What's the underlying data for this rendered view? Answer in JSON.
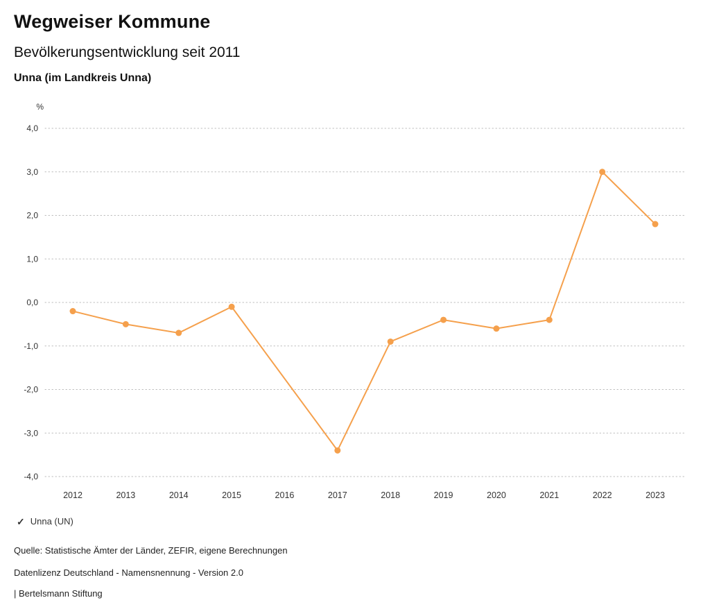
{
  "header": {
    "title": "Wegweiser Kommune",
    "subtitle": "Bevölkerungsentwicklung seit 2011",
    "region": "Unna (im Landkreis Unna)"
  },
  "colors": {
    "accent": "#F5A04C",
    "grid": "#bbbbbb",
    "axis_text": "#333333"
  },
  "icons": {
    "legend_check": "✓"
  },
  "chart_data": {
    "type": "line",
    "title": "Bevölkerungsentwicklung seit 2011",
    "unit_label": "%",
    "x": [
      2012,
      2013,
      2014,
      2015,
      2016,
      2017,
      2018,
      2019,
      2020,
      2021,
      2022,
      2023
    ],
    "series": [
      {
        "name": "Unna (UN)",
        "color": "#F5A04C",
        "values": [
          -0.2,
          -0.5,
          -0.7,
          -0.1,
          null,
          -3.4,
          -0.9,
          -0.4,
          -0.6,
          -0.4,
          3.0,
          1.8
        ]
      }
    ],
    "ylim": [
      -4.0,
      4.0
    ],
    "ytick_step": 1.0,
    "ytick_labels": [
      "-4,0",
      "-3,0",
      "-2,0",
      "-1,0",
      "0,0",
      "1,0",
      "2,0",
      "3,0",
      "4,0"
    ],
    "grid": "horizontal-dotted",
    "legend_position": "bottom-left"
  },
  "legend": {
    "label": "Unna (UN)"
  },
  "footer": {
    "source": "Quelle: Statistische Ämter der Länder, ZEFIR, eigene Berechnungen",
    "license": "Datenlizenz Deutschland - Namensnennung - Version 2.0",
    "attribution": "| Bertelsmann Stiftung"
  }
}
